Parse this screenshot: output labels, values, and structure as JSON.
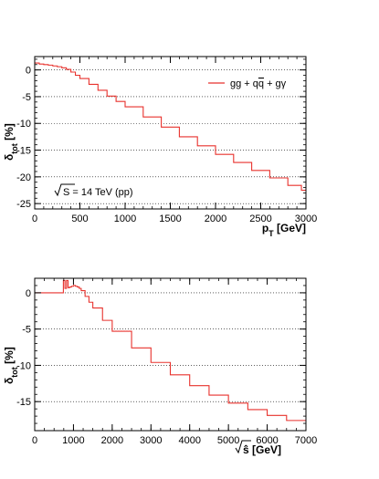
{
  "chart_data": [
    {
      "type": "line",
      "step": true,
      "grid": "dotted horizontal at major y ticks",
      "xlim": [
        0,
        3000
      ],
      "ylim": [
        -26,
        2.5
      ],
      "x_ticks": [
        0,
        500,
        1000,
        1500,
        2000,
        2500,
        3000
      ],
      "y_ticks": [
        0,
        -5,
        -10,
        -15,
        -20,
        -25
      ],
      "xlabel": "p_T [GeV]",
      "ylabel": "δ_tot [%]",
      "legend": {
        "entry": "gg + qq̄ + gγ",
        "placement": "top-right"
      },
      "annotation": "√S = 14 TeV (pp)",
      "series": [
        {
          "name": "gg + qq̄ + gγ",
          "color": "#e8322d",
          "x": [
            0,
            50,
            100,
            150,
            200,
            250,
            300,
            350,
            400,
            450,
            500,
            600,
            700,
            800,
            900,
            1000,
            1200,
            1400,
            1600,
            1800,
            2000,
            2200,
            2400,
            2600,
            2800,
            2950,
            3000
          ],
          "y": [
            1.3,
            1.1,
            1.0,
            0.9,
            0.75,
            0.6,
            0.4,
            0.1,
            -0.4,
            -1.0,
            -1.6,
            -2.7,
            -3.8,
            -4.9,
            -5.9,
            -6.9,
            -8.8,
            -10.7,
            -12.5,
            -14.2,
            -15.8,
            -17.3,
            -18.8,
            -20.2,
            -21.6,
            -22.5,
            -22.7
          ]
        }
      ]
    },
    {
      "type": "line",
      "step": true,
      "grid": "dotted horizontal at major y ticks",
      "xlim": [
        0,
        7000
      ],
      "ylim": [
        -19,
        2
      ],
      "x_ticks": [
        0,
        1000,
        2000,
        3000,
        4000,
        5000,
        6000,
        7000
      ],
      "y_ticks": [
        0,
        -5,
        -10,
        -15
      ],
      "xlabel": "√ŝ [GeV]",
      "ylabel": "δ_tot [%]",
      "series": [
        {
          "color": "#e8322d",
          "x": [
            0,
            700,
            740,
            780,
            820,
            860,
            900,
            950,
            1000,
            1050,
            1100,
            1150,
            1200,
            1300,
            1400,
            1500,
            1750,
            2000,
            2500,
            3000,
            3500,
            4000,
            4500,
            5000,
            5500,
            6000,
            6500,
            7000
          ],
          "y": [
            0,
            0,
            1.7,
            0.6,
            1.7,
            0.7,
            0.8,
            0.9,
            1.0,
            0.9,
            0.8,
            0.6,
            0.3,
            -0.5,
            -1.3,
            -2.1,
            -3.8,
            -5.3,
            -7.6,
            -9.6,
            -11.3,
            -12.8,
            -14.1,
            -15.2,
            -16.1,
            -16.9,
            -17.6,
            -18.3
          ]
        }
      ]
    }
  ]
}
